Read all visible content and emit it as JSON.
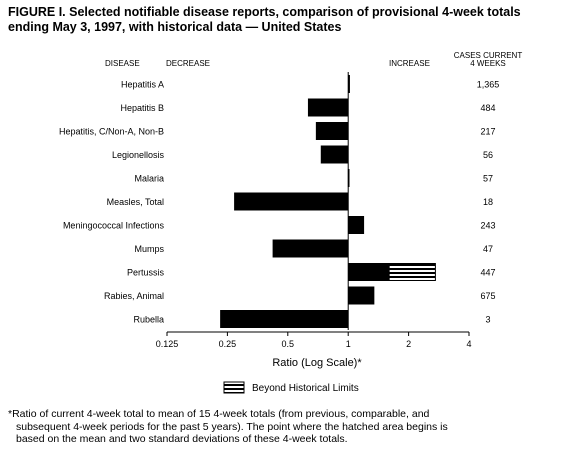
{
  "figure": {
    "title_line1": "FIGURE I. Selected notifiable disease reports, comparison of provisional 4-week totals",
    "title_line2": "ending May 3, 1997, with historical data — United States",
    "footnote_line1": "*Ratio of current 4-week total to mean of 15 4-week totals (from previous, comparable, and",
    "footnote_line2": "subsequent 4-week periods for the past 5 years). The point where the hatched area begins is",
    "footnote_line3": "based on the mean and two standard deviations of these 4-week totals."
  },
  "chart_data": {
    "type": "bar",
    "orientation": "horizontal",
    "x_scale": "log2",
    "xlim": [
      0.125,
      4
    ],
    "x_ticks": [
      0.125,
      0.25,
      0.5,
      1,
      2,
      4
    ],
    "x_tick_labels": [
      "0.125",
      "0.25",
      "0.5",
      "1",
      "2",
      "4"
    ],
    "baseline": 1,
    "xlabel": "Ratio (Log Scale)*",
    "header_disease": "DISEASE",
    "header_decrease": "DECREASE",
    "header_increase": "INCREASE",
    "header_cases_line1": "CASES CURRENT",
    "header_cases_line2": "4 WEEKS",
    "legend_label": "Beyond Historical Limits",
    "categories": [
      "Hepatitis A",
      "Hepatitis B",
      "Hepatitis, C/Non-A, Non-B",
      "Legionellosis",
      "Malaria",
      "Measles, Total",
      "Meningococcal Infections",
      "Mumps",
      "Pertussis",
      "Rabies, Animal",
      "Rubella"
    ],
    "ratios": [
      1.02,
      0.63,
      0.69,
      0.73,
      1.0,
      0.27,
      1.2,
      0.42,
      1.6,
      1.35,
      0.23
    ],
    "beyond_limits_end": [
      null,
      null,
      null,
      null,
      null,
      null,
      null,
      null,
      2.72,
      null,
      null
    ],
    "cases_current_4_weeks": [
      "1,365",
      "484",
      "217",
      "56",
      "57",
      "18",
      "243",
      "47",
      "447",
      "675",
      "3"
    ]
  }
}
